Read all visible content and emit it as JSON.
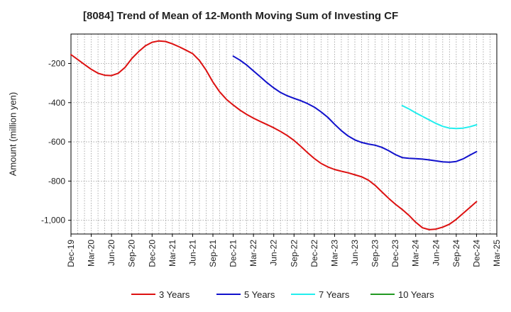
{
  "chart_data": {
    "type": "line",
    "title": "[8084]  Trend of Mean of 12-Month Moving Sum of Investing CF",
    "xlabel": "",
    "ylabel": "Amount (million yen)",
    "ylim": [
      -1070,
      -50
    ],
    "yticks": [
      -200,
      -400,
      -600,
      -800,
      -1000
    ],
    "ytick_labels": [
      "-200",
      "-400",
      "-600",
      "-800",
      "-1,000"
    ],
    "x_tick_labels": [
      "Dec-19",
      "Mar-20",
      "Jun-20",
      "Sep-20",
      "Dec-20",
      "Mar-21",
      "Jun-21",
      "Sep-21",
      "Dec-21",
      "Mar-22",
      "Jun-22",
      "Sep-22",
      "Dec-22",
      "Mar-23",
      "Jun-23",
      "Sep-23",
      "Dec-23",
      "Mar-24",
      "Jun-24",
      "Sep-24",
      "Dec-24",
      "Mar-25"
    ],
    "x_range_months": [
      0,
      63
    ],
    "grid": true,
    "legend_position": "bottom",
    "series": [
      {
        "name": "3 Years",
        "color": "#dd1111",
        "x": [
          0,
          1,
          2,
          3,
          4,
          5,
          6,
          7,
          8,
          9,
          10,
          11,
          12,
          13,
          14,
          15,
          16,
          17,
          18,
          19,
          20,
          21,
          22,
          23,
          24,
          25,
          26,
          27,
          28,
          29,
          30,
          31,
          32,
          33,
          34,
          35,
          36,
          37,
          38,
          39,
          40,
          41,
          42,
          43,
          44,
          45,
          46,
          47,
          48,
          49,
          50,
          51,
          52,
          53,
          54,
          55,
          56,
          57,
          58,
          59,
          60
        ],
        "values": [
          -155,
          -180,
          -205,
          -230,
          -250,
          -260,
          -262,
          -250,
          -220,
          -175,
          -140,
          -110,
          -92,
          -85,
          -88,
          -100,
          -115,
          -132,
          -150,
          -185,
          -235,
          -295,
          -345,
          -383,
          -412,
          -438,
          -460,
          -479,
          -496,
          -512,
          -528,
          -547,
          -568,
          -593,
          -623,
          -655,
          -685,
          -710,
          -728,
          -741,
          -750,
          -758,
          -768,
          -778,
          -795,
          -822,
          -855,
          -888,
          -918,
          -945,
          -975,
          -1010,
          -1038,
          -1048,
          -1045,
          -1035,
          -1020,
          -995,
          -965,
          -935,
          -905
        ]
      },
      {
        "name": "5 Years",
        "color": "#1111cc",
        "x": [
          24,
          25,
          26,
          27,
          28,
          29,
          30,
          31,
          32,
          33,
          34,
          35,
          36,
          37,
          38,
          39,
          40,
          41,
          42,
          43,
          44,
          45,
          46,
          47,
          48,
          49,
          50,
          51,
          52,
          53,
          54,
          55,
          56,
          57,
          58,
          59,
          60
        ],
        "values": [
          -163,
          -183,
          -208,
          -238,
          -268,
          -298,
          -325,
          -348,
          -365,
          -378,
          -390,
          -405,
          -423,
          -447,
          -475,
          -510,
          -543,
          -570,
          -590,
          -603,
          -611,
          -617,
          -628,
          -645,
          -665,
          -680,
          -684,
          -686,
          -688,
          -692,
          -697,
          -702,
          -704,
          -700,
          -687,
          -668,
          -650
        ]
      },
      {
        "name": "7 Years",
        "color": "#22eeee",
        "x": [
          49,
          50,
          51,
          52,
          53,
          54,
          55,
          56,
          57,
          58,
          59,
          60
        ],
        "values": [
          -415,
          -432,
          -452,
          -470,
          -488,
          -506,
          -521,
          -530,
          -532,
          -530,
          -523,
          -513
        ]
      },
      {
        "name": "10 Years",
        "color": "#229922",
        "x": [],
        "values": []
      }
    ]
  }
}
